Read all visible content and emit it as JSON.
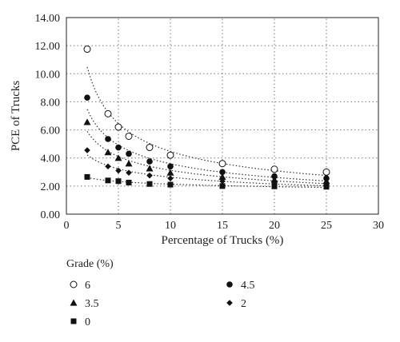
{
  "chart_data": {
    "type": "scatter",
    "xlabel": "Percentage of Trucks (%)",
    "ylabel": "PCE of Trucks",
    "xlim": [
      0,
      30
    ],
    "ylim": [
      0,
      14
    ],
    "xticks": [
      0,
      5,
      10,
      15,
      20,
      25,
      30
    ],
    "xtick_labels": [
      "0",
      "5",
      "10",
      "15",
      "20",
      "25",
      "30"
    ],
    "yticks": [
      0,
      2,
      4,
      6,
      8,
      10,
      12,
      14
    ],
    "ytick_labels": [
      "0.00",
      "2.00",
      "4.00",
      "6.00",
      "8.00",
      "10.00",
      "12.00",
      "14.00"
    ],
    "grid": true,
    "legend": {
      "title": "Grade (%)",
      "placement": "below",
      "entries": [
        "6",
        "4.5",
        "3.5",
        "2",
        "0"
      ]
    },
    "x": [
      2,
      4,
      5,
      6,
      8,
      10,
      15,
      20,
      25
    ],
    "series": [
      {
        "name": "6",
        "marker": "open-circle",
        "values": [
          11.75,
          7.15,
          6.2,
          5.55,
          4.75,
          4.2,
          3.6,
          3.2,
          3.0
        ]
      },
      {
        "name": "4.5",
        "marker": "filled-circle",
        "values": [
          8.3,
          5.35,
          4.75,
          4.3,
          3.75,
          3.4,
          3.0,
          2.7,
          2.55
        ]
      },
      {
        "name": "3.5",
        "marker": "triangle",
        "values": [
          6.55,
          4.4,
          4.0,
          3.6,
          3.25,
          2.95,
          2.65,
          2.45,
          2.35
        ]
      },
      {
        "name": "2",
        "marker": "diamond",
        "values": [
          4.55,
          3.4,
          3.1,
          2.95,
          2.75,
          2.55,
          2.35,
          2.2,
          2.1
        ]
      },
      {
        "name": "0",
        "marker": "square",
        "values": [
          2.65,
          2.4,
          2.35,
          2.25,
          2.15,
          2.1,
          2.0,
          1.98,
          1.95
        ]
      }
    ],
    "trendlines": "dotted power-law fits per series"
  }
}
